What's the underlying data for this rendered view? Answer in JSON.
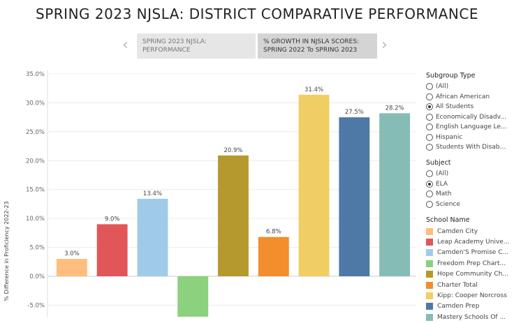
{
  "title": "SPRING 2023 NJSLA: DISTRICT COMPARATIVE PERFORMANCE",
  "story": {
    "prev_icon": "chevron-left-icon",
    "next_icon": "chevron-right-icon",
    "prev_glyph": "‹",
    "next_glyph": "›",
    "tabs": [
      {
        "label": "SPRING 2023 NJSLA:   PERFORMANCE",
        "active": false
      },
      {
        "label": "% GROWTH IN NJSLA SCORES: SPRING 2022 To SPRING 2023",
        "active": true
      }
    ]
  },
  "filters": {
    "subgroup": {
      "title": "Subgroup Type",
      "options": [
        "(All)",
        "African American",
        "All Students",
        "Economically Disadv...",
        "English Language Le...",
        "Hispanic",
        "Students With Disab..."
      ],
      "selected": "All Students"
    },
    "subject": {
      "title": "Subject",
      "options": [
        "(All)",
        "ELA",
        "Math",
        "Science"
      ],
      "selected": "ELA"
    }
  },
  "legend": {
    "title": "School Name",
    "items": [
      {
        "label": "Camden City",
        "color": "#FFBE7D"
      },
      {
        "label": "Leap Academy Unive...",
        "color": "#E15759"
      },
      {
        "label": "Camden'S Promise C...",
        "color": "#A0CBE8"
      },
      {
        "label": "Freedom Prep Chart...",
        "color": "#8CD17D"
      },
      {
        "label": "Hope Community Ch...",
        "color": "#B6992D"
      },
      {
        "label": "Charter Total",
        "color": "#F28E2B"
      },
      {
        "label": "Kipp: Cooper Norcross",
        "color": "#F1CE63"
      },
      {
        "label": "Camden Prep",
        "color": "#4E79A7"
      },
      {
        "label": "Mastery Schools Of ...",
        "color": "#86BCB6"
      }
    ]
  },
  "chart_data": {
    "type": "bar",
    "ylabel": "% Difference in Proficiency 2022-23",
    "ylim": [
      -7,
      35
    ],
    "yticks": [
      35,
      30,
      25,
      20,
      15,
      10,
      5,
      0,
      -5
    ],
    "ytick_labels": [
      "35.0%",
      "30.0%",
      "25.0%",
      "20.0%",
      "15.0%",
      "10.0%",
      "5.0%",
      "0.0%",
      "-5.0%"
    ],
    "categories": [
      "Camden City",
      "Leap Academy Unive...",
      "Camden'S Promise C...",
      "Freedom Prep Chart...",
      "Hope Community Ch...",
      "Charter Total",
      "Kipp: Cooper Norcross",
      "Camden Prep",
      "Mastery Schools Of ..."
    ],
    "values": [
      3.0,
      9.0,
      13.4,
      -7.5,
      20.9,
      6.8,
      31.4,
      27.5,
      28.2
    ],
    "value_labels": [
      "3.0%",
      "9.0%",
      "13.4%",
      "",
      "20.9%",
      "6.8%",
      "31.4%",
      "27.5%",
      "28.2%"
    ],
    "colors": [
      "#FFBE7D",
      "#E15759",
      "#A0CBE8",
      "#8CD17D",
      "#B6992D",
      "#F28E2B",
      "#F1CE63",
      "#4E79A7",
      "#86BCB6"
    ]
  }
}
